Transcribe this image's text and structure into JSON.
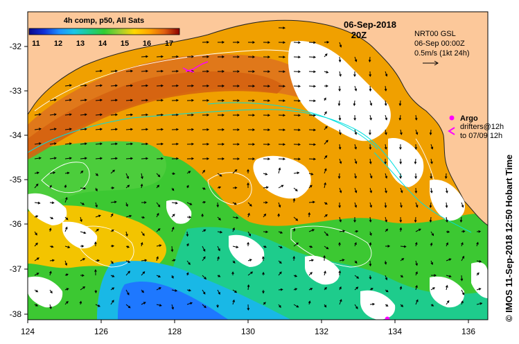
{
  "header": {
    "composite_label": "4h comp, p50, All Sats",
    "date": "06-Sep-2018",
    "time": "20Z"
  },
  "colorbar": {
    "ticks": [
      "11",
      "12",
      "13",
      "14",
      "15",
      "16",
      "17"
    ],
    "colors": [
      "#08088c",
      "#1030d8",
      "#1e90ff",
      "#19c6e6",
      "#1ecc8c",
      "#32cd32",
      "#9acd32",
      "#ffd700",
      "#ffa500",
      "#e06010",
      "#c02000",
      "#8b0000"
    ]
  },
  "current_info": {
    "line1": "NRT00 GSL",
    "line2": "06-Sep 00:00Z",
    "line3": "0.5m/s (1kt 24h)"
  },
  "legend": {
    "argo_label": "Argo",
    "drifters_line1": "drifters@12h",
    "drifters_line2": "to 07/09 12h",
    "argo_color": "#ff00ff"
  },
  "credit": "©  IMOS 11-Sep-2018 12:50 Hobart Time",
  "axes": {
    "x_ticks": [
      "124",
      "126",
      "128",
      "130",
      "132",
      "134",
      "136"
    ],
    "y_ticks": [
      "-32",
      "-33",
      "-34",
      "-35",
      "-36",
      "-37",
      "-38"
    ],
    "x_range": [
      124,
      136.5
    ],
    "y_range": [
      -31.2,
      -38.2
    ]
  },
  "colors": {
    "land": "#fcc89a",
    "cloud": "#ffffff",
    "current_line": "#00e0e0",
    "contour": "#ffffff"
  }
}
